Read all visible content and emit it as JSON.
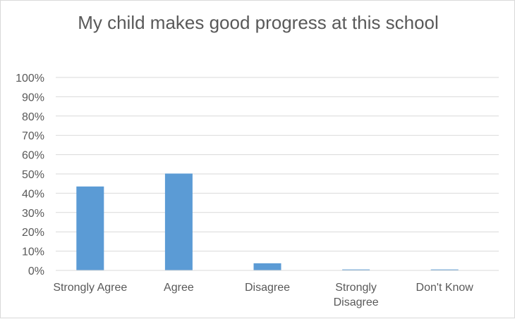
{
  "chart_data": {
    "type": "bar",
    "title": "My child makes good progress at this school",
    "categories": [
      "Strongly Agree",
      "Agree",
      "Disagree",
      "Strongly Disagree",
      "Don't Know"
    ],
    "category_lines": [
      [
        "Strongly Agree"
      ],
      [
        "Agree"
      ],
      [
        "Disagree"
      ],
      [
        "Strongly",
        "Disagree"
      ],
      [
        "Don't Know"
      ]
    ],
    "values": [
      43.5,
      50.2,
      3.7,
      0.5,
      0.5
    ],
    "ylim": [
      0,
      100
    ],
    "yticks": [
      0,
      10,
      20,
      30,
      40,
      50,
      60,
      70,
      80,
      90,
      100
    ],
    "ytick_labels": [
      "0%",
      "10%",
      "20%",
      "30%",
      "40%",
      "50%",
      "60%",
      "70%",
      "80%",
      "90%",
      "100%"
    ],
    "xlabel": "",
    "ylabel": "",
    "grid": true,
    "legend": "none",
    "bar_color": "#5b9bd5"
  }
}
